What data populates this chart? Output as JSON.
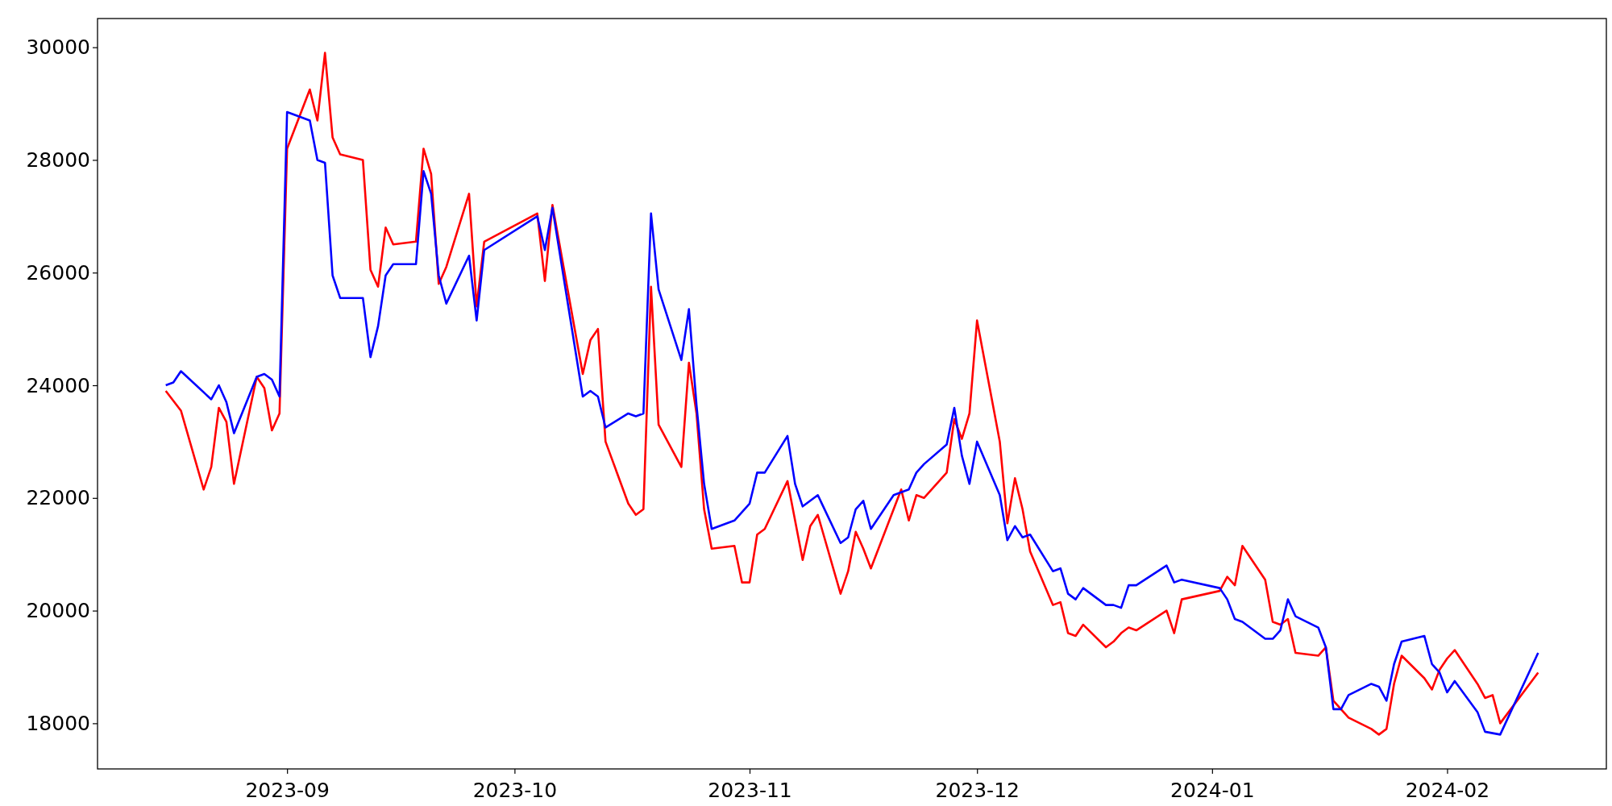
{
  "chart_data": {
    "type": "line",
    "xlim": [
      "2023-08-07",
      "2024-02-22"
    ],
    "xticks": [
      {
        "value": "2023-09-01",
        "label": "2023-09"
      },
      {
        "value": "2023-10-01",
        "label": "2023-10"
      },
      {
        "value": "2023-11-01",
        "label": "2023-11"
      },
      {
        "value": "2023-12-01",
        "label": "2023-12"
      },
      {
        "value": "2024-01-01",
        "label": "2024-01"
      },
      {
        "value": "2024-02-01",
        "label": "2024-02"
      }
    ],
    "ylim": [
      17190,
      30510
    ],
    "yticks": [
      18000,
      20000,
      22000,
      24000,
      26000,
      28000,
      30000
    ],
    "grid": false,
    "series": [
      {
        "color": "#ff0000",
        "x": [
          "2023-08-16",
          "2023-08-18",
          "2023-08-21",
          "2023-08-22",
          "2023-08-23",
          "2023-08-24",
          "2023-08-25",
          "2023-08-28",
          "2023-08-29",
          "2023-08-30",
          "2023-08-31",
          "2023-09-01",
          "2023-09-04",
          "2023-09-05",
          "2023-09-06",
          "2023-09-07",
          "2023-09-08",
          "2023-09-11",
          "2023-09-12",
          "2023-09-13",
          "2023-09-14",
          "2023-09-15",
          "2023-09-18",
          "2023-09-19",
          "2023-09-20",
          "2023-09-21",
          "2023-09-22",
          "2023-09-25",
          "2023-09-26",
          "2023-09-27",
          "2023-10-04",
          "2023-10-05",
          "2023-10-06",
          "2023-10-10",
          "2023-10-11",
          "2023-10-12",
          "2023-10-13",
          "2023-10-16",
          "2023-10-17",
          "2023-10-18",
          "2023-10-19",
          "2023-10-20",
          "2023-10-23",
          "2023-10-24",
          "2023-10-25",
          "2023-10-26",
          "2023-10-27",
          "2023-10-30",
          "2023-10-31",
          "2023-11-01",
          "2023-11-02",
          "2023-11-03",
          "2023-11-06",
          "2023-11-08",
          "2023-11-09",
          "2023-11-10",
          "2023-11-13",
          "2023-11-14",
          "2023-11-15",
          "2023-11-16",
          "2023-11-17",
          "2023-11-21",
          "2023-11-22",
          "2023-11-23",
          "2023-11-24",
          "2023-11-27",
          "2023-11-28",
          "2023-11-29",
          "2023-11-30",
          "2023-12-01",
          "2023-12-04",
          "2023-12-05",
          "2023-12-06",
          "2023-12-07",
          "2023-12-08",
          "2023-12-11",
          "2023-12-12",
          "2023-12-13",
          "2023-12-14",
          "2023-12-15",
          "2023-12-18",
          "2023-12-19",
          "2023-12-20",
          "2023-12-21",
          "2023-12-22",
          "2023-12-26",
          "2023-12-27",
          "2023-12-28",
          "2024-01-02",
          "2024-01-03",
          "2024-01-04",
          "2024-01-05",
          "2024-01-08",
          "2024-01-09",
          "2024-01-10",
          "2024-01-11",
          "2024-01-12",
          "2024-01-15",
          "2024-01-16",
          "2024-01-17",
          "2024-01-18",
          "2024-01-19",
          "2024-01-22",
          "2024-01-23",
          "2024-01-24",
          "2024-01-25",
          "2024-01-26",
          "2024-01-29",
          "2024-01-30",
          "2024-01-31",
          "2024-02-01",
          "2024-02-02",
          "2024-02-05",
          "2024-02-06",
          "2024-02-07",
          "2024-02-08",
          "2024-02-13"
        ],
        "values": [
          23900,
          23550,
          22150,
          22550,
          23600,
          23350,
          22250,
          24150,
          23950,
          23200,
          23500,
          28200,
          29250,
          28700,
          29900,
          28400,
          28100,
          28000,
          26050,
          25750,
          26800,
          26500,
          26550,
          28200,
          27750,
          25800,
          26100,
          27400,
          25400,
          26550,
          27050,
          25850,
          27200,
          24200,
          24800,
          25000,
          23000,
          21900,
          21700,
          21800,
          25750,
          23300,
          22550,
          24400,
          23500,
          21800,
          21100,
          21150,
          20500,
          20500,
          21350,
          21450,
          22300,
          20900,
          21500,
          21700,
          20300,
          20700,
          21400,
          21100,
          20750,
          22150,
          21600,
          22050,
          22000,
          22450,
          23400,
          23050,
          23500,
          25150,
          23000,
          21550,
          22350,
          21800,
          21050,
          20100,
          20150,
          19600,
          19550,
          19750,
          19350,
          19450,
          19600,
          19700,
          19650,
          20000,
          19600,
          20200,
          20350,
          20600,
          20450,
          21150,
          20550,
          19800,
          19750,
          19850,
          19250,
          19200,
          19350,
          18400,
          18250,
          18100,
          17900,
          17800,
          17900,
          18700,
          19200,
          18800,
          18600,
          18950,
          19150,
          19300,
          18700,
          18450,
          18500,
          18000,
          18900
        ]
      },
      {
        "color": "#0000ff",
        "x": [
          "2023-08-16",
          "2023-08-17",
          "2023-08-18",
          "2023-08-22",
          "2023-08-23",
          "2023-08-24",
          "2023-08-25",
          "2023-08-28",
          "2023-08-29",
          "2023-08-30",
          "2023-08-31",
          "2023-09-01",
          "2023-09-04",
          "2023-09-05",
          "2023-09-06",
          "2023-09-07",
          "2023-09-08",
          "2023-09-11",
          "2023-09-12",
          "2023-09-13",
          "2023-09-14",
          "2023-09-15",
          "2023-09-18",
          "2023-09-19",
          "2023-09-20",
          "2023-09-21",
          "2023-09-22",
          "2023-09-25",
          "2023-09-26",
          "2023-09-27",
          "2023-10-04",
          "2023-10-05",
          "2023-10-06",
          "2023-10-10",
          "2023-10-11",
          "2023-10-12",
          "2023-10-13",
          "2023-10-16",
          "2023-10-17",
          "2023-10-18",
          "2023-10-19",
          "2023-10-20",
          "2023-10-23",
          "2023-10-24",
          "2023-10-25",
          "2023-10-26",
          "2023-10-27",
          "2023-10-30",
          "2023-11-01",
          "2023-11-02",
          "2023-11-03",
          "2023-11-06",
          "2023-11-07",
          "2023-11-08",
          "2023-11-10",
          "2023-11-13",
          "2023-11-14",
          "2023-11-15",
          "2023-11-16",
          "2023-11-17",
          "2023-11-20",
          "2023-11-21",
          "2023-11-22",
          "2023-11-23",
          "2023-11-24",
          "2023-11-27",
          "2023-11-28",
          "2023-11-29",
          "2023-11-30",
          "2023-12-01",
          "2023-12-04",
          "2023-12-05",
          "2023-12-06",
          "2023-12-07",
          "2023-12-08",
          "2023-12-11",
          "2023-12-12",
          "2023-12-13",
          "2023-12-14",
          "2023-12-15",
          "2023-12-18",
          "2023-12-19",
          "2023-12-20",
          "2023-12-21",
          "2023-12-22",
          "2023-12-26",
          "2023-12-27",
          "2023-12-28",
          "2024-01-02",
          "2024-01-03",
          "2024-01-04",
          "2024-01-05",
          "2024-01-08",
          "2024-01-09",
          "2024-01-10",
          "2024-01-11",
          "2024-01-12",
          "2024-01-15",
          "2024-01-16",
          "2024-01-17",
          "2024-01-18",
          "2024-01-19",
          "2024-01-22",
          "2024-01-23",
          "2024-01-24",
          "2024-01-25",
          "2024-01-26",
          "2024-01-29",
          "2024-01-30",
          "2024-01-31",
          "2024-02-01",
          "2024-02-02",
          "2024-02-05",
          "2024-02-06",
          "2024-02-08",
          "2024-02-13"
        ],
        "values": [
          24000,
          24050,
          24250,
          23750,
          24000,
          23700,
          23150,
          24150,
          24200,
          24100,
          23800,
          28850,
          28700,
          28000,
          27950,
          25950,
          25550,
          25550,
          24500,
          25050,
          25950,
          26150,
          26150,
          27800,
          27400,
          25950,
          25450,
          26300,
          25150,
          26400,
          27000,
          26400,
          27150,
          23800,
          23900,
          23800,
          23250,
          23500,
          23450,
          23500,
          27050,
          25700,
          24450,
          25350,
          23650,
          22250,
          21450,
          21600,
          21900,
          22450,
          22450,
          23100,
          22250,
          21850,
          22050,
          21200,
          21300,
          21800,
          21950,
          21450,
          22050,
          22100,
          22150,
          22450,
          22600,
          22950,
          23600,
          22750,
          22250,
          23000,
          22050,
          21250,
          21500,
          21300,
          21350,
          20700,
          20750,
          20300,
          20200,
          20400,
          20100,
          20100,
          20050,
          20450,
          20450,
          20800,
          20500,
          20550,
          20400,
          20200,
          19850,
          19800,
          19500,
          19500,
          19650,
          20200,
          19900,
          19700,
          19350,
          18250,
          18250,
          18500,
          18700,
          18650,
          18400,
          19050,
          19450,
          19550,
          19050,
          18900,
          18550,
          18750,
          18200,
          17850,
          17800,
          19250
        ]
      }
    ]
  }
}
